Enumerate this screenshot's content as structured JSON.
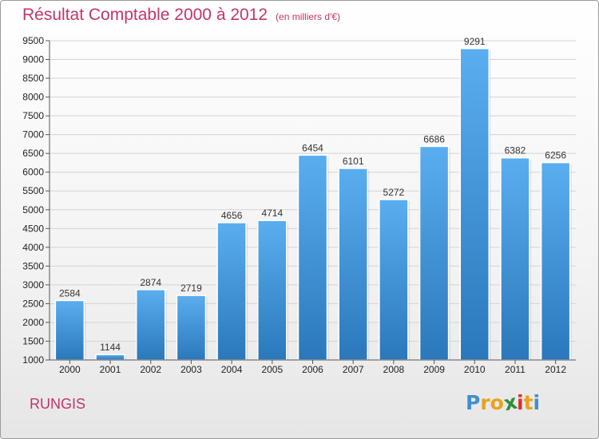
{
  "chart_data": {
    "type": "bar",
    "title": "Résultat Comptable 2000 à 2012",
    "subtitle": "(en milliers d'€)",
    "categories": [
      "2000",
      "2001",
      "2002",
      "2003",
      "2004",
      "2005",
      "2006",
      "2007",
      "2008",
      "2009",
      "2010",
      "2011",
      "2012"
    ],
    "values": [
      2584,
      1144,
      2874,
      2719,
      4656,
      4714,
      6454,
      6101,
      5272,
      6686,
      9291,
      6382,
      6256
    ],
    "ylim": [
      1000,
      9500
    ],
    "yticks": [
      "1000",
      "1500",
      "2000",
      "2500",
      "3000",
      "3500",
      "4000",
      "4500",
      "5000",
      "5500",
      "6000",
      "6500",
      "7000",
      "7500",
      "8000",
      "8500",
      "9000",
      "9500"
    ],
    "xlabel": "",
    "ylabel": "",
    "grid": true,
    "bar_color": "#3d8fd6"
  },
  "location": "RUNGIS",
  "brand": {
    "letters": [
      "P",
      "r",
      "o",
      "x",
      "i",
      "t",
      "i"
    ],
    "colors": [
      "#3f8fd0",
      "#e8a21c",
      "#e8a21c",
      "#2d8e3a",
      "#d9322a",
      "#e8a21c",
      "#3f8fd0"
    ]
  }
}
